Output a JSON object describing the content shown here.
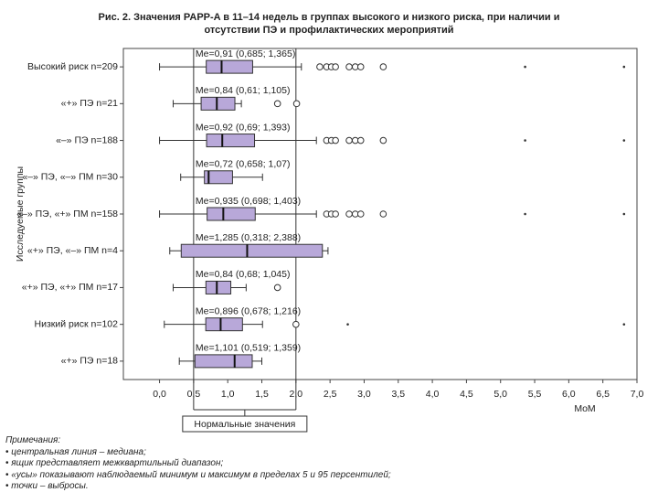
{
  "chart_data": {
    "type": "boxplot",
    "title": "Рис. 2. Значения PAPP-A в 11–14 недель в группах высокого и низкого риска, при наличии и отсутствии ПЭ и профилактических мероприятий",
    "y_label": "Исследуемые группы",
    "x_label": "MoM",
    "xlim": [
      -0.53,
      7
    ],
    "xticks": [
      {
        "value": 0,
        "label": "0,0"
      },
      {
        "value": 0.5,
        "label": "0,5"
      },
      {
        "value": 1,
        "label": "1,0"
      },
      {
        "value": 1.5,
        "label": "1,5"
      },
      {
        "value": 2,
        "label": "2,0"
      },
      {
        "value": 2.5,
        "label": "2,5"
      },
      {
        "value": 3,
        "label": "3,0"
      },
      {
        "value": 3.5,
        "label": "3,5"
      },
      {
        "value": 4,
        "label": "4,0"
      },
      {
        "value": 4.5,
        "label": "4,5"
      },
      {
        "value": 5,
        "label": "5,0"
      },
      {
        "value": 5.5,
        "label": "5,5"
      },
      {
        "value": 6,
        "label": "6,0"
      },
      {
        "value": 6.5,
        "label": "6,5"
      },
      {
        "value": 7,
        "label": "7,0"
      }
    ],
    "box_color": "#b8a8d9",
    "normal_range": {
      "values": [
        0.5,
        2.0
      ],
      "label": "Нормальные значения"
    },
    "groups": [
      {
        "label": "Высокий риск n=209",
        "annotation": "Me=0,91 (0,685; 1,365)",
        "whisker_low": 0.0,
        "q1": 0.685,
        "median": 0.91,
        "q3": 1.365,
        "whisker_high": 2.08,
        "outliers": [
          2.35,
          2.45,
          2.52,
          2.58,
          2.78,
          2.87,
          2.95,
          3.28
        ],
        "extremes": [
          5.36,
          6.81
        ]
      },
      {
        "label": "«+» ПЭ n=21",
        "annotation": "Me=0,84 (0,61; 1,105)",
        "whisker_low": 0.2,
        "q1": 0.61,
        "median": 0.84,
        "q3": 1.105,
        "whisker_high": 1.2,
        "outliers": [
          1.73,
          2.01
        ],
        "extremes": []
      },
      {
        "label": "«–» ПЭ n=188",
        "annotation": "Me=0,92 (0,69; 1,393)",
        "whisker_low": 0.0,
        "q1": 0.69,
        "median": 0.92,
        "q3": 1.393,
        "whisker_high": 2.3,
        "outliers": [
          2.45,
          2.52,
          2.58,
          2.78,
          2.87,
          2.95,
          3.28
        ],
        "extremes": [
          5.36,
          6.81
        ]
      },
      {
        "label": "«–» ПЭ, «–» ПМ n=30",
        "annotation": "Me=0,72 (0,658; 1,07)",
        "whisker_low": 0.31,
        "q1": 0.658,
        "median": 0.72,
        "q3": 1.07,
        "whisker_high": 1.51,
        "outliers": [],
        "extremes": []
      },
      {
        "label": "«–» ПЭ, «+» ПМ n=158",
        "annotation": "Me=0,935 (0,698; 1,403)",
        "whisker_low": 0.0,
        "q1": 0.698,
        "median": 0.935,
        "q3": 1.403,
        "whisker_high": 2.3,
        "outliers": [
          2.45,
          2.52,
          2.58,
          2.78,
          2.87,
          2.95,
          3.28
        ],
        "extremes": [
          5.36,
          6.81
        ]
      },
      {
        "label": "«+» ПЭ, «–» ПМ n=4",
        "annotation": "Me=1,285 (0,318; 2,388)",
        "whisker_low": 0.15,
        "q1": 0.318,
        "median": 1.285,
        "q3": 2.388,
        "whisker_high": 2.47,
        "outliers": [],
        "extremes": []
      },
      {
        "label": "«+» ПЭ, «+» ПМ n=17",
        "annotation": "Me=0,84 (0,68; 1,045)",
        "whisker_low": 0.2,
        "q1": 0.68,
        "median": 0.84,
        "q3": 1.045,
        "whisker_high": 1.27,
        "outliers": [
          1.73
        ],
        "extremes": []
      },
      {
        "label": "Низкий риск n=102",
        "annotation": "Me=0,896 (0,678; 1,216)",
        "whisker_low": 0.07,
        "q1": 0.678,
        "median": 0.896,
        "q3": 1.216,
        "whisker_high": 1.51,
        "outliers": [
          2.0
        ],
        "extremes": [
          2.76,
          6.81
        ]
      },
      {
        "label": "«+» ПЭ n=18",
        "annotation": "Me=1,101 (0,519; 1,359)",
        "whisker_low": 0.29,
        "q1": 0.519,
        "median": 1.101,
        "q3": 1.359,
        "whisker_high": 1.5,
        "outliers": [],
        "extremes": []
      }
    ]
  },
  "notes": {
    "heading": "Примечания:",
    "items": [
      "центральная линия – медиана;",
      "ящик представляет межквартильный диапазон;",
      "«усы» показывают наблюдаемый минимум и максимум в пределах 5 и 95 персентилей;",
      "точки – выбросы."
    ]
  }
}
